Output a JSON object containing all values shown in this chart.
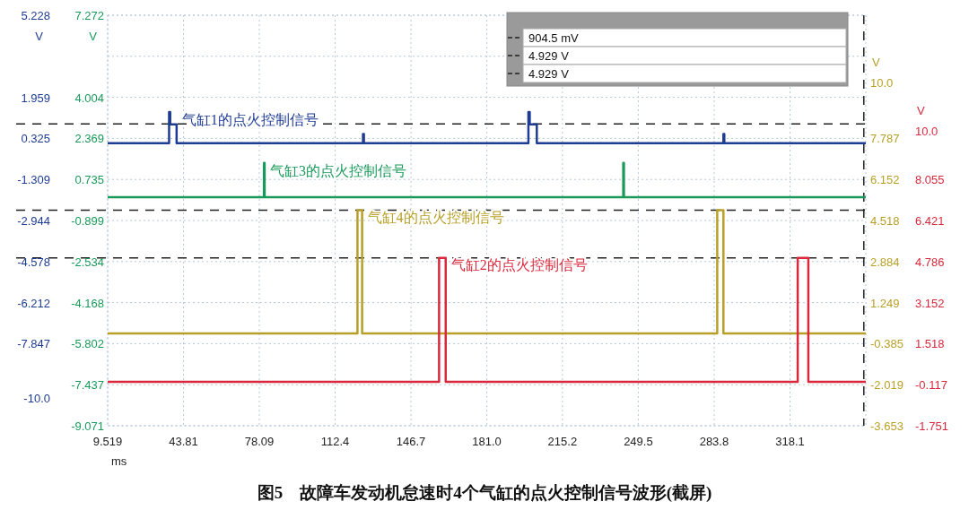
{
  "chart_data": [
    {
      "type": "line",
      "title": "图5　故障车发动机怠速时4个气缸的点火控制信号波形(截屏)",
      "xlabel": "ms",
      "ylabel": "V",
      "y2label": "V",
      "xlim": [
        9.519,
        352.4
      ],
      "xticks": [
        9.519,
        43.81,
        78.09,
        112.4,
        146.7,
        {
          "value": 181,
          "label": "181.0"
        },
        215.2,
        249.5,
        283.8,
        318.1
      ],
      "ylim": [
        -11.115,
        5.228
      ],
      "yticks": [
        5.228,
        1.959,
        0.325,
        -1.309,
        -2.944,
        -4.578,
        -6.212,
        -7.847,
        {
          "value": -10,
          "label": "-10.0"
        }
      ],
      "y2lim": [
        -9.071,
        7.272
      ],
      "y2ticks": [
        7.272,
        {
          "value": 5.638,
          "label": null
        },
        4.004,
        2.369,
        0.735,
        -0.899,
        -2.534,
        -4.168,
        -5.802,
        -7.437,
        -9.071
      ],
      "grid": true,
      "line_style": "solid",
      "marker": "none",
      "ref_lines": [
        {
          "axis": "y",
          "value": 0.9045,
          "label": "904.5 mV",
          "line_style": "dashed"
        },
        {
          "axis": "x",
          "value": 351.5,
          "line_style": "dashed"
        }
      ],
      "series": [
        {
          "name": "气缸1的点火控制信号",
          "color": "#1f3c94",
          "x": [
            9.519,
            37.3,
            37.3,
            37.8,
            37.8,
            40.7,
            40.7,
            125.0,
            125.0,
            125.4,
            125.4,
            199.8,
            199.8,
            200.4,
            200.4,
            203.6,
            203.6,
            288.0,
            288.0,
            288.4,
            288.4,
            352.4
          ],
          "values": [
            0.13,
            0.13,
            1.37,
            1.37,
            0.88,
            0.88,
            0.13,
            0.13,
            0.5,
            0.5,
            0.13,
            0.13,
            1.37,
            1.37,
            0.88,
            0.88,
            0.13,
            0.13,
            0.5,
            0.5,
            0.13,
            0.13
          ]
        },
        {
          "name": "气缸3的点火控制信号",
          "color": "#1a9a5a",
          "axis": "y2",
          "x": [
            9.519,
            80.2,
            80.2,
            80.5,
            80.5,
            242.7,
            242.7,
            243.0,
            243.0,
            352.4
          ],
          "values": [
            0.03,
            0.03,
            1.39,
            1.39,
            0.03,
            0.03,
            1.39,
            1.39,
            0.03,
            0.03
          ]
        }
      ]
    },
    {
      "type": "line",
      "ylabel": "V",
      "y2label": "V",
      "tick_labels": "y",
      "xlim": [
        9.519,
        352.4
      ],
      "ylim": [
        -3.653,
        12.69
      ],
      "yticks": [
        {
          "value": 10,
          "label": "10.0"
        },
        7.787,
        6.152,
        4.518,
        2.884,
        1.249,
        -0.385,
        -2.019,
        -3.653
      ],
      "y2lim": [
        -1.751,
        14.592
      ],
      "y2ticks": [
        {
          "value": 10,
          "label": "10.0"
        },
        8.055,
        6.421,
        4.786,
        3.152,
        1.518,
        -0.117,
        -1.751
      ],
      "line_style": "solid",
      "marker": "none",
      "ref_lines": [
        {
          "axis": "y2",
          "value": 4.929,
          "label": "4.929 V",
          "line_style": "dashed"
        },
        {
          "axis": "y",
          "value": 4.929,
          "label": "4.929 V",
          "line_style": "dashed"
        }
      ],
      "series": [
        {
          "name": "气缸4的点火控制信号",
          "color": "#b8a028",
          "x": [
            9.519,
            122.5,
            122.5,
            124.6,
            124.6,
            285.2,
            285.2,
            288.0,
            288.0,
            352.4
          ],
          "values": [
            0.02,
            0.02,
            4.93,
            4.93,
            0.02,
            0.02,
            4.93,
            4.93,
            0.02,
            0.02
          ]
        },
        {
          "name": "气缸2的点火控制信号",
          "color": "#d9283c",
          "axis": "y2",
          "x": [
            9.519,
            159.4,
            159.4,
            162.4,
            162.4,
            321.6,
            321.6,
            326.4,
            326.4,
            352.4
          ],
          "values": [
            0.0,
            0.0,
            4.93,
            4.93,
            0.0,
            0.0,
            4.93,
            4.93,
            0.0,
            0.0
          ]
        }
      ]
    }
  ]
}
